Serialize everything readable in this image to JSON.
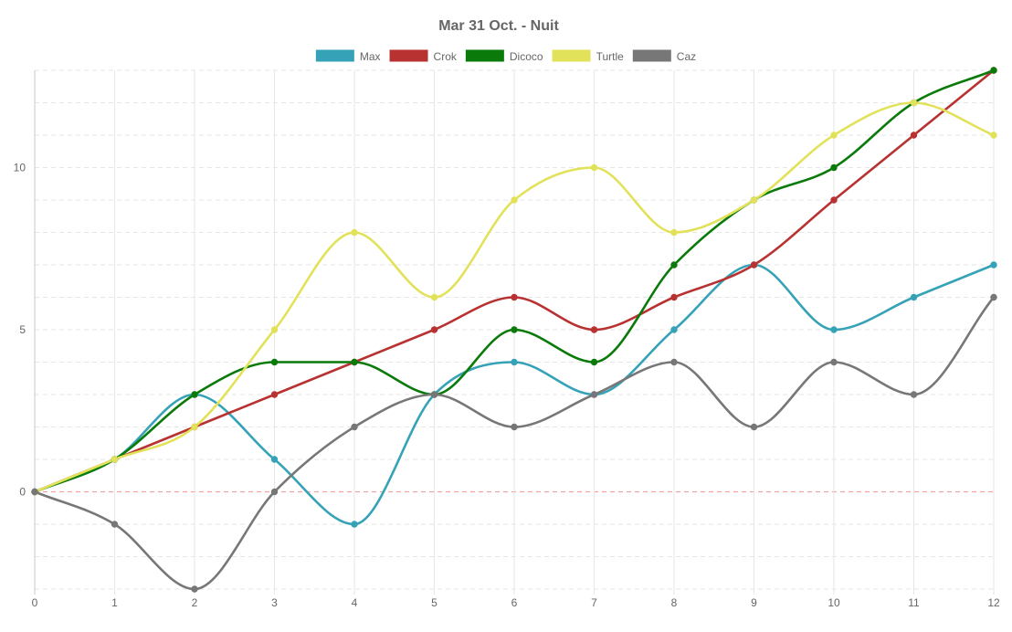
{
  "chart_data": {
    "type": "line",
    "title": "Mar 31 Oct. - Nuit",
    "xlabel": "",
    "ylabel": "",
    "x": [
      0,
      1,
      2,
      3,
      4,
      5,
      6,
      7,
      8,
      9,
      10,
      11,
      12
    ],
    "xlim": [
      0,
      12
    ],
    "ylim": [
      -3,
      13
    ],
    "y_ticks": [
      0,
      5,
      10
    ],
    "grid": true,
    "grid_style": "dashed",
    "legend_position": "top",
    "zero_line_color": "#f4a3a3",
    "series": [
      {
        "name": "Max",
        "color": "#36a2b8",
        "values": [
          0,
          1,
          3,
          1,
          -1,
          3,
          4,
          3,
          5,
          7,
          5,
          6,
          7
        ]
      },
      {
        "name": "Crok",
        "color": "#b83232",
        "values": [
          0,
          1,
          2,
          3,
          4,
          5,
          6,
          5,
          6,
          7,
          9,
          11,
          13
        ]
      },
      {
        "name": "Dicoco",
        "color": "#0a7a0a",
        "values": [
          0,
          1,
          3,
          4,
          4,
          3,
          5,
          4,
          7,
          9,
          10,
          12,
          13
        ]
      },
      {
        "name": "Turtle",
        "color": "#e2e25a",
        "values": [
          0,
          1,
          2,
          5,
          8,
          6,
          9,
          10,
          8,
          9,
          11,
          12,
          11
        ]
      },
      {
        "name": "Caz",
        "color": "#777777",
        "values": [
          0,
          -1,
          -3,
          0,
          2,
          3,
          2,
          3,
          4,
          2,
          4,
          3,
          6
        ]
      }
    ]
  }
}
